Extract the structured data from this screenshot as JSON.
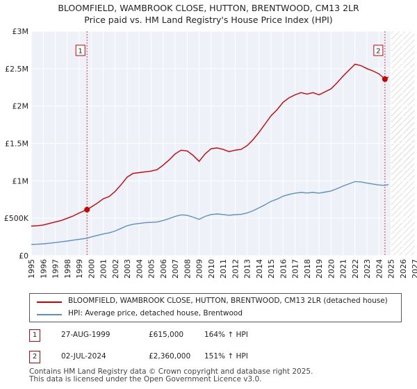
{
  "chart_data": {
    "type": "line",
    "title": "BLOOMFIELD, WAMBROOK CLOSE, HUTTON, BRENTWOOD, CM13 2LR",
    "subtitle": "Price paid vs. HM Land Registry's House Price Index (HPI)",
    "xlim": [
      1995,
      2027
    ],
    "ylim": [
      0,
      3000000
    ],
    "x_ticks": [
      "1995",
      "1996",
      "1997",
      "1998",
      "1999",
      "2000",
      "2001",
      "2002",
      "2003",
      "2004",
      "2005",
      "2006",
      "2007",
      "2008",
      "2009",
      "2010",
      "2011",
      "2012",
      "2013",
      "2014",
      "2015",
      "2016",
      "2017",
      "2018",
      "2019",
      "2020",
      "2021",
      "2022",
      "2023",
      "2024",
      "2025",
      "2026",
      "2027"
    ],
    "y_ticks": [
      {
        "label": "£0",
        "value": 0
      },
      {
        "label": "£500K",
        "value": 500000
      },
      {
        "label": "£1M",
        "value": 1000000
      },
      {
        "label": "£1.5M",
        "value": 1500000
      },
      {
        "label": "£2M",
        "value": 2000000
      },
      {
        "label": "£2.5M",
        "value": 2500000
      },
      {
        "label": "£3M",
        "value": 3000000
      }
    ],
    "forecast_start": 2025.0,
    "series": [
      {
        "name": "BLOOMFIELD, WAMBROOK CLOSE, HUTTON, BRENTWOOD, CM13 2LR (detached house)",
        "color": "#cc0000",
        "points": [
          [
            1995.0,
            395000
          ],
          [
            1995.5,
            400000
          ],
          [
            1996.0,
            410000
          ],
          [
            1996.5,
            430000
          ],
          [
            1997.0,
            450000
          ],
          [
            1997.5,
            470000
          ],
          [
            1998.0,
            500000
          ],
          [
            1998.5,
            530000
          ],
          [
            1999.0,
            570000
          ],
          [
            1999.65,
            615000
          ],
          [
            2000.0,
            650000
          ],
          [
            2000.5,
            700000
          ],
          [
            2001.0,
            760000
          ],
          [
            2001.5,
            790000
          ],
          [
            2002.0,
            860000
          ],
          [
            2002.5,
            950000
          ],
          [
            2003.0,
            1050000
          ],
          [
            2003.5,
            1100000
          ],
          [
            2004.0,
            1110000
          ],
          [
            2004.5,
            1120000
          ],
          [
            2005.0,
            1130000
          ],
          [
            2005.5,
            1150000
          ],
          [
            2006.0,
            1210000
          ],
          [
            2006.5,
            1280000
          ],
          [
            2007.0,
            1360000
          ],
          [
            2007.5,
            1410000
          ],
          [
            2008.0,
            1400000
          ],
          [
            2008.5,
            1340000
          ],
          [
            2009.0,
            1260000
          ],
          [
            2009.5,
            1360000
          ],
          [
            2010.0,
            1430000
          ],
          [
            2010.5,
            1440000
          ],
          [
            2011.0,
            1420000
          ],
          [
            2011.5,
            1390000
          ],
          [
            2012.0,
            1410000
          ],
          [
            2012.5,
            1420000
          ],
          [
            2013.0,
            1470000
          ],
          [
            2013.5,
            1550000
          ],
          [
            2014.0,
            1650000
          ],
          [
            2014.5,
            1760000
          ],
          [
            2015.0,
            1870000
          ],
          [
            2015.5,
            1950000
          ],
          [
            2016.0,
            2050000
          ],
          [
            2016.5,
            2110000
          ],
          [
            2017.0,
            2150000
          ],
          [
            2017.5,
            2180000
          ],
          [
            2018.0,
            2160000
          ],
          [
            2018.5,
            2180000
          ],
          [
            2019.0,
            2150000
          ],
          [
            2019.5,
            2190000
          ],
          [
            2020.0,
            2230000
          ],
          [
            2020.5,
            2310000
          ],
          [
            2021.0,
            2400000
          ],
          [
            2021.5,
            2480000
          ],
          [
            2022.0,
            2560000
          ],
          [
            2022.5,
            2540000
          ],
          [
            2023.0,
            2500000
          ],
          [
            2023.5,
            2470000
          ],
          [
            2024.0,
            2430000
          ],
          [
            2024.5,
            2360000
          ],
          [
            2024.8,
            2390000
          ]
        ]
      },
      {
        "name": "HPI: Average price, detached house, Brentwood",
        "color": "#5b8fc9",
        "points": [
          [
            1995.0,
            150000
          ],
          [
            1995.5,
            152000
          ],
          [
            1996.0,
            158000
          ],
          [
            1996.5,
            165000
          ],
          [
            1997.0,
            175000
          ],
          [
            1997.5,
            185000
          ],
          [
            1998.0,
            195000
          ],
          [
            1998.5,
            207000
          ],
          [
            1999.0,
            218000
          ],
          [
            1999.65,
            233000
          ],
          [
            2000.0,
            250000
          ],
          [
            2000.5,
            270000
          ],
          [
            2001.0,
            290000
          ],
          [
            2001.5,
            305000
          ],
          [
            2002.0,
            330000
          ],
          [
            2002.5,
            365000
          ],
          [
            2003.0,
            400000
          ],
          [
            2003.5,
            420000
          ],
          [
            2004.0,
            430000
          ],
          [
            2004.5,
            440000
          ],
          [
            2005.0,
            445000
          ],
          [
            2005.5,
            450000
          ],
          [
            2006.0,
            470000
          ],
          [
            2006.5,
            495000
          ],
          [
            2007.0,
            525000
          ],
          [
            2007.5,
            545000
          ],
          [
            2008.0,
            540000
          ],
          [
            2008.5,
            515000
          ],
          [
            2009.0,
            485000
          ],
          [
            2009.5,
            525000
          ],
          [
            2010.0,
            550000
          ],
          [
            2010.5,
            557000
          ],
          [
            2011.0,
            550000
          ],
          [
            2011.5,
            540000
          ],
          [
            2012.0,
            548000
          ],
          [
            2012.5,
            552000
          ],
          [
            2013.0,
            570000
          ],
          [
            2013.5,
            600000
          ],
          [
            2014.0,
            640000
          ],
          [
            2014.5,
            680000
          ],
          [
            2015.0,
            725000
          ],
          [
            2015.5,
            755000
          ],
          [
            2016.0,
            795000
          ],
          [
            2016.5,
            818000
          ],
          [
            2017.0,
            835000
          ],
          [
            2017.5,
            845000
          ],
          [
            2018.0,
            838000
          ],
          [
            2018.5,
            845000
          ],
          [
            2019.0,
            835000
          ],
          [
            2019.5,
            850000
          ],
          [
            2020.0,
            865000
          ],
          [
            2020.5,
            895000
          ],
          [
            2021.0,
            930000
          ],
          [
            2021.5,
            960000
          ],
          [
            2022.0,
            990000
          ],
          [
            2022.5,
            985000
          ],
          [
            2023.0,
            970000
          ],
          [
            2023.5,
            958000
          ],
          [
            2024.0,
            945000
          ],
          [
            2024.5,
            940000
          ],
          [
            2024.8,
            950000
          ]
        ]
      }
    ],
    "markers": [
      {
        "label": "1",
        "x": 1999.65,
        "y": 615000
      },
      {
        "label": "2",
        "x": 2024.5,
        "y": 2360000
      }
    ]
  },
  "legend": {
    "property": "BLOOMFIELD, WAMBROOK CLOSE, HUTTON, BRENTWOOD, CM13 2LR (detached house)",
    "hpi": "HPI: Average price, detached house, Brentwood",
    "property_color": "#cc0000",
    "hpi_color": "#5b8fc9"
  },
  "transactions": [
    {
      "num": "1",
      "date": "27-AUG-1999",
      "price": "£615,000",
      "hpi": "164% ↑ HPI"
    },
    {
      "num": "2",
      "date": "02-JUL-2024",
      "price": "£2,360,000",
      "hpi": "151% ↑ HPI"
    }
  ],
  "footer": {
    "line1": "Contains HM Land Registry data © Crown copyright and database right 2025.",
    "line2": "This data is licensed under the Open Government Licence v3.0."
  }
}
